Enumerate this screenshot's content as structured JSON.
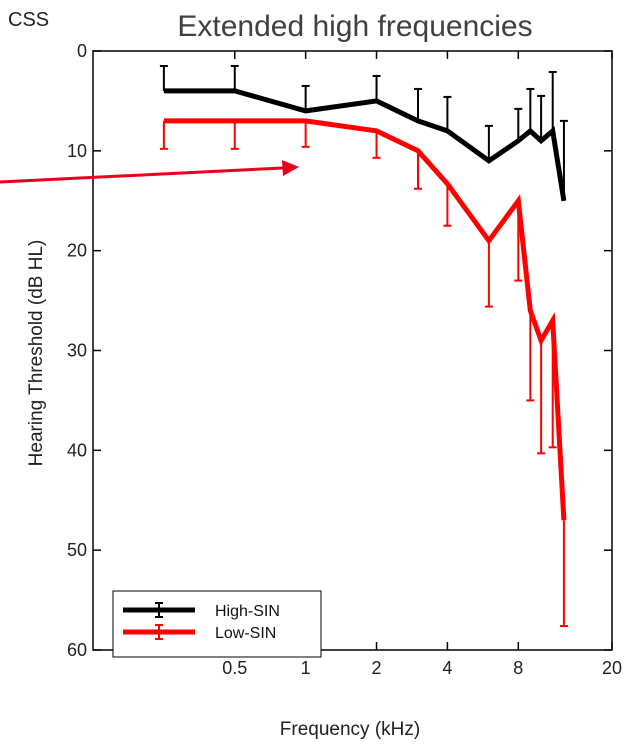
{
  "corner_label": "CSS",
  "chart_data": {
    "type": "line",
    "title": "Extended high frequencies",
    "xlabel": "Frequency (kHz)",
    "ylabel": "Hearing Threshold (dB HL)",
    "x_scale": "log",
    "xlim": [
      0.125,
      20
    ],
    "ylim": [
      60,
      0
    ],
    "y_inverted": true,
    "x_ticks": [
      0.5,
      1,
      2,
      4,
      8,
      20
    ],
    "x_tick_labels": [
      "0.5",
      "1",
      "2",
      "4",
      "8",
      "20"
    ],
    "y_ticks": [
      0,
      10,
      20,
      30,
      40,
      50,
      60
    ],
    "y_tick_labels": [
      "0",
      "10",
      "20",
      "30",
      "40",
      "50",
      "60"
    ],
    "grid": false,
    "legend_position": "bottom-left",
    "x": [
      0.25,
      0.5,
      1,
      2,
      3,
      4,
      6,
      8,
      9,
      10,
      11.2,
      12.5
    ],
    "series": [
      {
        "name": "High-SIN",
        "color": "#000000",
        "values": [
          4,
          4,
          6,
          5,
          7,
          8,
          11,
          9,
          8,
          9,
          8,
          15
        ],
        "error_upper": [
          2.5,
          2.5,
          2.5,
          2.5,
          3.2,
          3.4,
          3.5,
          3.2,
          4.2,
          4.5,
          5.9,
          8
        ]
      },
      {
        "name": "Low-SIN",
        "color": "#ff0000",
        "values": [
          7,
          7,
          7,
          8,
          10,
          13.3,
          19,
          15,
          26,
          29,
          27,
          47
        ],
        "error_lower": [
          2.8,
          2.8,
          2.6,
          2.7,
          3.8,
          4.2,
          6.6,
          8,
          9,
          11.3,
          12.7,
          10.6
        ]
      }
    ],
    "annotation": {
      "type": "arrow",
      "color": "#e8001c"
    }
  }
}
